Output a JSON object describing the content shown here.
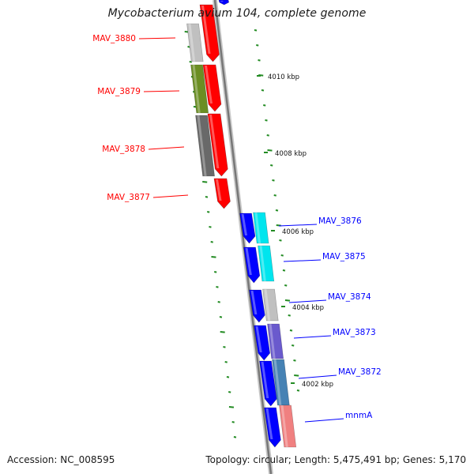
{
  "title": "Mycobacterium avium 104, complete genome",
  "accession": "Accession: NC_008595",
  "summary": "Topology: circular; Length: 5,475,491 bp; Genes: 5,170",
  "ticks": [
    {
      "label": "4010 kbp"
    },
    {
      "label": "4008 kbp"
    },
    {
      "label": "4006 kbp"
    },
    {
      "label": "4004 kbp"
    },
    {
      "label": "4002 kbp"
    }
  ],
  "left_genes": [
    {
      "label": "MAV_3880",
      "color": "#ff0000"
    },
    {
      "label": "MAV_3879",
      "color": "#ff0000"
    },
    {
      "label": "MAV_3878",
      "color": "#ff0000"
    },
    {
      "label": "MAV_3877",
      "color": "#ff0000"
    }
  ],
  "right_genes": [
    {
      "label": "MAV_3876",
      "color": "#0000ff"
    },
    {
      "label": "MAV_3875",
      "color": "#0000ff"
    },
    {
      "label": "MAV_3874",
      "color": "#0000ff"
    },
    {
      "label": "MAV_3873",
      "color": "#0000ff"
    },
    {
      "label": "MAV_3872",
      "color": "#0000ff"
    },
    {
      "label": "mnmA",
      "color": "#0000ff"
    }
  ],
  "colors": {
    "forward_strand": "#ff0000",
    "reverse_strand": "#0000ff",
    "backbone": "#888888",
    "tick_marks": "#228b22"
  }
}
